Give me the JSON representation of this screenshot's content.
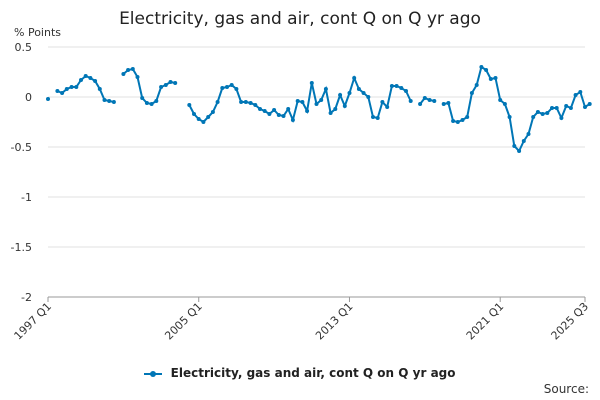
{
  "chart_data": {
    "type": "line",
    "title": "Electricity, gas and air, cont Q on Q yr ago",
    "ylabel": "% Points",
    "ylim": [
      -2,
      0.5
    ],
    "yticks": [
      0.5,
      0,
      -0.5,
      -1,
      -1.5,
      -2
    ],
    "x_start": "1997 Q1",
    "x_end": "2025 Q3",
    "xtick_labels": [
      "1997 Q1",
      "2005 Q1",
      "2013 Q1",
      "2021 Q1",
      "2025 Q3"
    ],
    "grid": true,
    "legend_placement": "bottom",
    "series": [
      {
        "name": "Electricity, gas and air, cont Q on Q yr ago",
        "color": "#0076b6",
        "values": [
          -0.02,
          null,
          0.06,
          0.04,
          0.08,
          0.1,
          0.1,
          0.17,
          0.21,
          0.19,
          0.16,
          0.08,
          -0.03,
          -0.04,
          -0.05,
          null,
          0.23,
          0.27,
          0.28,
          0.2,
          -0.01,
          -0.06,
          -0.07,
          -0.04,
          0.1,
          0.12,
          0.15,
          0.14,
          null,
          null,
          -0.08,
          -0.17,
          -0.22,
          -0.25,
          -0.2,
          -0.15,
          -0.05,
          0.09,
          0.1,
          0.12,
          0.08,
          -0.05,
          -0.05,
          -0.06,
          -0.08,
          -0.12,
          -0.14,
          -0.17,
          -0.13,
          -0.18,
          -0.19,
          -0.12,
          -0.23,
          -0.04,
          -0.05,
          -0.14,
          0.14,
          -0.07,
          -0.03,
          0.08,
          -0.16,
          -0.12,
          0.02,
          -0.09,
          0.04,
          0.19,
          0.08,
          0.04,
          0.0,
          -0.2,
          -0.21,
          -0.05,
          -0.1,
          0.11,
          0.11,
          0.09,
          0.06,
          -0.04,
          null,
          -0.07,
          -0.01,
          -0.03,
          -0.04,
          null,
          -0.07,
          -0.06,
          -0.24,
          -0.25,
          -0.23,
          -0.2,
          0.04,
          0.12,
          0.3,
          0.27,
          0.18,
          0.19,
          -0.03,
          -0.07,
          -0.2,
          -0.49,
          -0.54,
          -0.44,
          -0.37,
          -0.2,
          -0.15,
          -0.17,
          -0.16,
          -0.11,
          -0.11,
          -0.21,
          -0.09,
          -0.11,
          0.02,
          0.05,
          -0.1,
          -0.07
        ]
      }
    ]
  },
  "source_label": "Source:"
}
